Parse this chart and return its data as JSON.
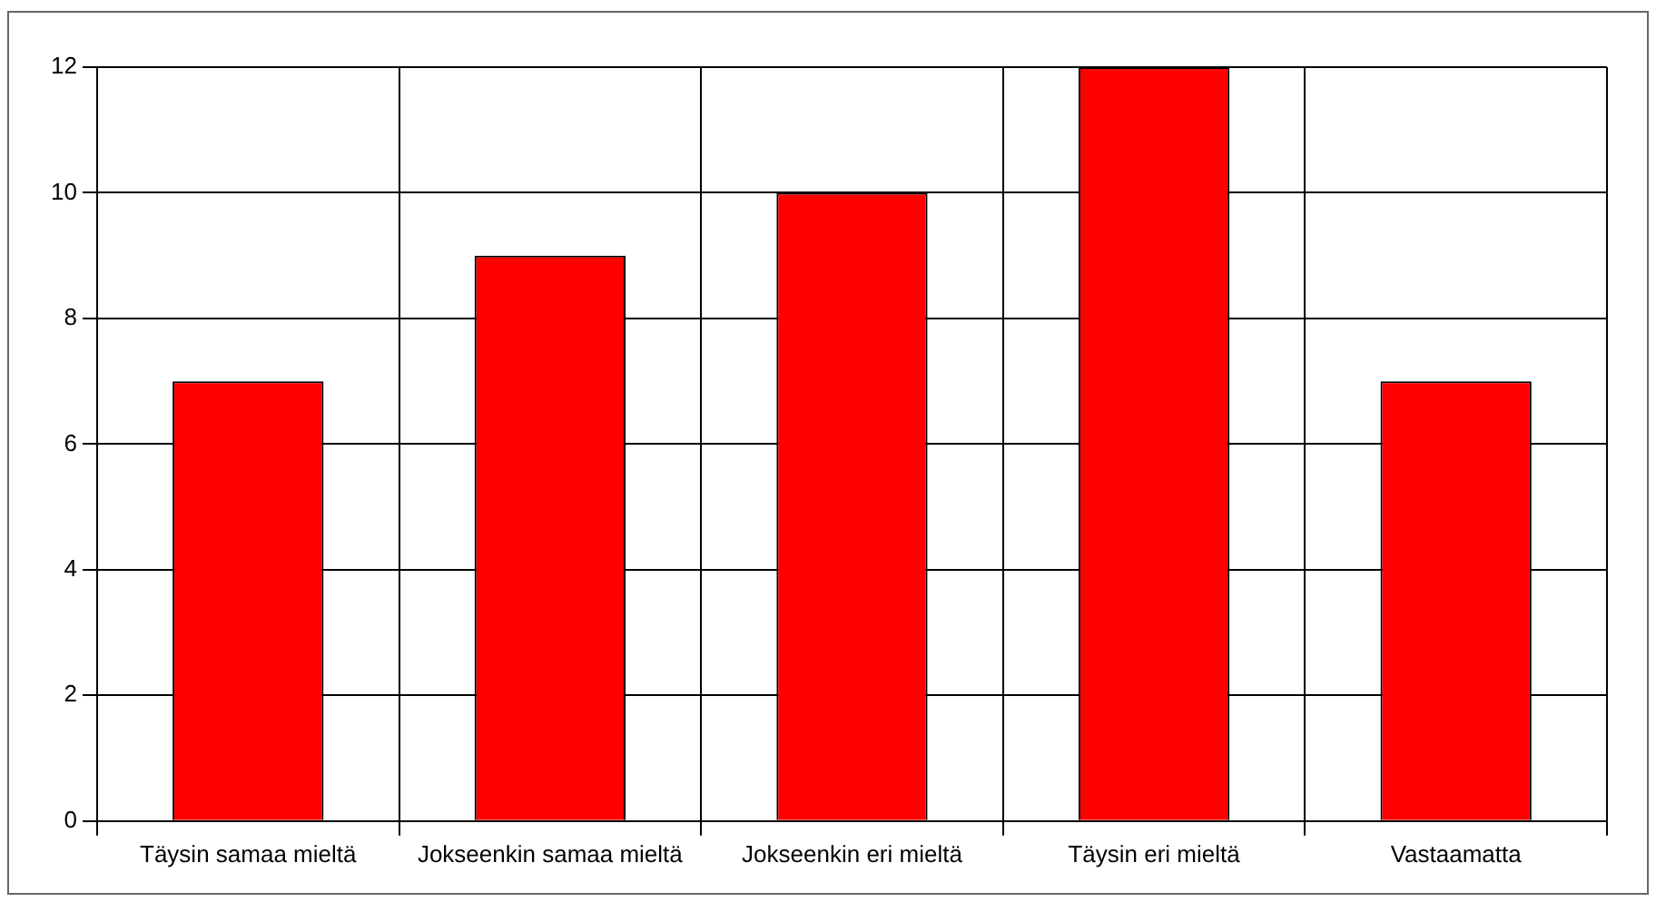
{
  "chart_data": {
    "type": "bar",
    "categories": [
      "Täysin samaa mieltä",
      "Jokseenkin samaa mieltä",
      "Jokseenkin eri mieltä",
      "Täysin eri mieltä",
      "Vastaamatta"
    ],
    "values": [
      7,
      9,
      10,
      12,
      7
    ],
    "color": "#ff0000",
    "ylim": [
      0,
      12
    ],
    "yticks": [
      0,
      2,
      4,
      6,
      8,
      10,
      12
    ],
    "grid": true,
    "legend": false
  }
}
